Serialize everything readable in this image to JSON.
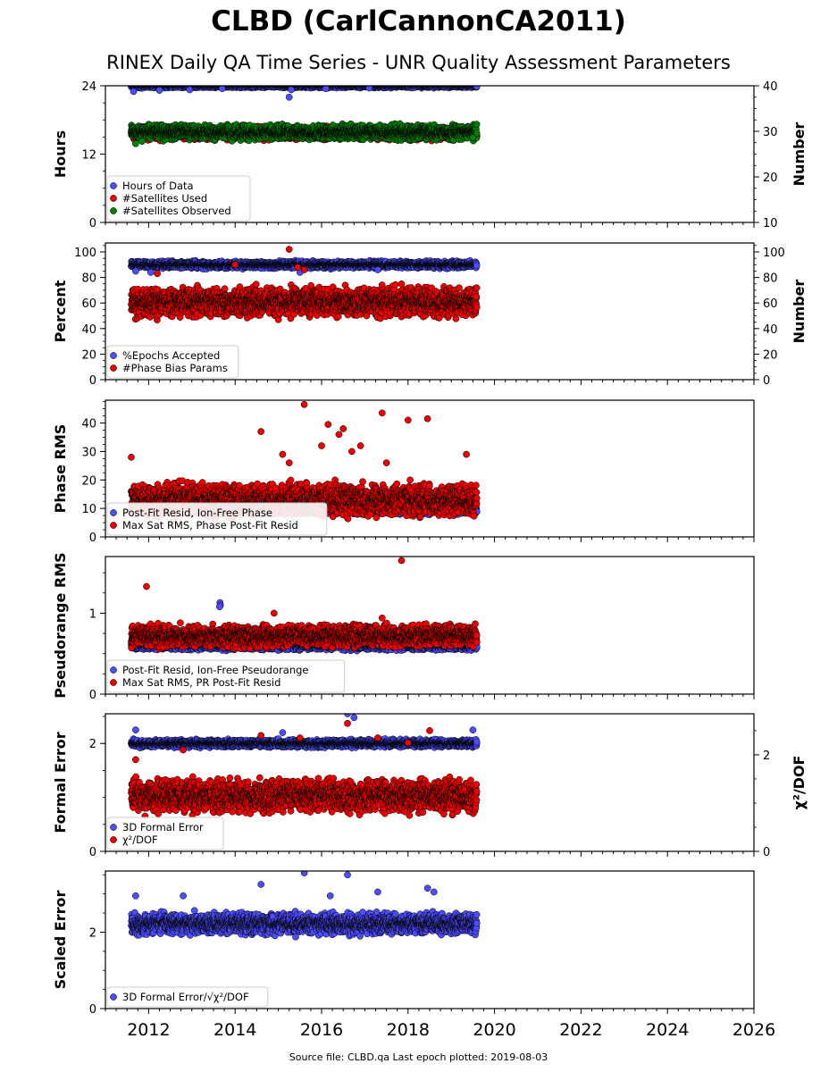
{
  "title": "CLBD (CarlCannonCA2011)",
  "subtitle": "RINEX Daily QA Time Series - UNR Quality Assessment Parameters",
  "source_note": "Source file: CLBD.qa Last epoch plotted: 2019-08-03",
  "colors": {
    "blue": "#4d4dff",
    "red": "#ee0000",
    "green": "#008000"
  },
  "chart_data": [
    {
      "type": "scatter",
      "ylabel": "Hours",
      "ylabel_right": "Number",
      "xlim": [
        2011.0,
        2026.0
      ],
      "ylim": [
        0,
        24
      ],
      "ylim_right": [
        10,
        40
      ],
      "yticks": [
        0,
        12,
        24
      ],
      "yticks_right": [
        10,
        20,
        30,
        40
      ],
      "xticks": [
        2012,
        2014,
        2016,
        2018,
        2020,
        2022,
        2024,
        2026
      ],
      "data_range": [
        2011.6,
        2019.59
      ],
      "legend": [
        "Hours of Data",
        "#Satellites Used",
        "#Satellites Observed"
      ],
      "series": [
        {
          "name": "Hours of Data",
          "color": "blue",
          "axis": "left",
          "base": 24,
          "noise": 0.15,
          "outliers": [
            [
              2011.65,
              23.0
            ],
            [
              2012.25,
              23.2
            ],
            [
              2012.95,
              23.3
            ],
            [
              2013.7,
              23.5
            ],
            [
              2015.25,
              22.0
            ],
            [
              2015.3,
              23.3
            ],
            [
              2016.1,
              23.5
            ],
            [
              2017.1,
              23.6
            ]
          ]
        },
        {
          "name": "#Satellites Used",
          "color": "red",
          "axis": "right",
          "base": 29.6,
          "noise": 0.6,
          "outliers": []
        },
        {
          "name": "#Satellites Observed",
          "color": "green",
          "axis": "right",
          "base": 29.8,
          "noise": 0.7,
          "outliers": [
            [
              2011.7,
              27.3
            ],
            [
              2011.85,
              27.8
            ],
            [
              2019.5,
              28.6
            ]
          ]
        }
      ]
    },
    {
      "type": "scatter",
      "ylabel": "Percent",
      "ylabel_right": "Number",
      "xlim": [
        2011.0,
        2026.0
      ],
      "ylim": [
        0,
        107
      ],
      "ylim_right": [
        0,
        107
      ],
      "yticks": [
        0,
        20,
        40,
        60,
        80,
        100
      ],
      "yticks_right": [
        0,
        20,
        40,
        60,
        80,
        100
      ],
      "xticks": [
        2012,
        2014,
        2016,
        2018,
        2020,
        2022,
        2024,
        2026
      ],
      "data_range": [
        2011.6,
        2019.59
      ],
      "legend": [
        "%Epochs Accepted",
        "#Phase Bias Params"
      ],
      "series": [
        {
          "name": "%Epochs Accepted",
          "color": "blue",
          "axis": "left",
          "base": 90,
          "noise": 1.2,
          "outliers": [
            [
              2011.7,
              85
            ],
            [
              2012.05,
              84
            ],
            [
              2015.5,
              84
            ],
            [
              2017.3,
              86
            ]
          ]
        },
        {
          "name": "#Phase Bias Params",
          "color": "red",
          "axis": "right",
          "base": 61,
          "noise": 5,
          "outliers": [
            [
              2012.2,
              83
            ],
            [
              2014.0,
              90
            ],
            [
              2015.25,
              102
            ],
            [
              2015.45,
              88
            ],
            [
              2015.6,
              86
            ],
            [
              2017.85,
              75
            ]
          ]
        }
      ]
    },
    {
      "type": "scatter",
      "ylabel": "Phase RMS",
      "xlim": [
        2011.0,
        2026.0
      ],
      "ylim": [
        0,
        48
      ],
      "yticks": [
        0,
        10,
        20,
        30,
        40
      ],
      "xticks": [
        2012,
        2014,
        2016,
        2018,
        2020,
        2022,
        2024,
        2026
      ],
      "data_range": [
        2011.6,
        2019.59
      ],
      "legend": [
        "Post-Fit Resid, Ion-Free Phase",
        "Max Sat RMS, Phase Post-Fit Resid"
      ],
      "series": [
        {
          "name": "Post-Fit Resid, Ion-Free Phase",
          "color": "blue",
          "axis": "left",
          "base": 9.3,
          "noise": 0.6,
          "outliers": []
        },
        {
          "name": "Max Sat RMS, Phase Post-Fit Resid",
          "color": "red",
          "axis": "left",
          "base": 13,
          "noise": 2.5,
          "outliers": [
            [
              2011.6,
              28
            ],
            [
              2014.6,
              37
            ],
            [
              2015.1,
              29
            ],
            [
              2015.6,
              46.5
            ],
            [
              2016.0,
              32
            ],
            [
              2016.15,
              39.5
            ],
            [
              2016.4,
              36
            ],
            [
              2016.5,
              38
            ],
            [
              2016.7,
              30
            ],
            [
              2016.9,
              32
            ],
            [
              2017.4,
              43.5
            ],
            [
              2018.0,
              41
            ],
            [
              2018.45,
              41.5
            ],
            [
              2019.35,
              29
            ],
            [
              2015.25,
              26
            ],
            [
              2017.5,
              26
            ]
          ]
        }
      ]
    },
    {
      "type": "scatter",
      "ylabel": "Pseudorange RMS",
      "xlim": [
        2011.0,
        2026.0
      ],
      "ylim": [
        0,
        1.7
      ],
      "yticks": [
        0,
        1
      ],
      "xticks": [
        2012,
        2014,
        2016,
        2018,
        2020,
        2022,
        2024,
        2026
      ],
      "data_range": [
        2011.6,
        2019.59
      ],
      "legend": [
        "Post-Fit Resid, Ion-Free Pseudorange",
        "Max Sat RMS, PR Post-Fit Resid"
      ],
      "series": [
        {
          "name": "Post-Fit Resid, Ion-Free Pseudorange",
          "color": "blue",
          "axis": "left",
          "base": 0.6,
          "noise": 0.025,
          "outliers": [
            [
              2013.65,
              1.13
            ],
            [
              2013.66,
              1.1
            ],
            [
              2013.64,
              1.08
            ]
          ]
        },
        {
          "name": "Max Sat RMS, PR Post-Fit Resid",
          "color": "red",
          "axis": "left",
          "base": 0.72,
          "noise": 0.06,
          "outliers": [
            [
              2011.95,
              1.33
            ],
            [
              2014.9,
              1.0
            ],
            [
              2017.85,
              1.65
            ],
            [
              2017.4,
              0.94
            ]
          ]
        }
      ]
    },
    {
      "type": "scatter",
      "ylabel": "Formal Error",
      "ylabel_right": "χ²/DOF",
      "xlim": [
        2011.0,
        2026.0
      ],
      "ylim": [
        0,
        2.55
      ],
      "ylim_right": [
        0,
        2.85
      ],
      "yticks": [
        0,
        2
      ],
      "yticks_right": [
        0,
        2
      ],
      "xticks": [
        2012,
        2014,
        2016,
        2018,
        2020,
        2022,
        2024,
        2026
      ],
      "data_range": [
        2011.6,
        2019.59
      ],
      "legend": [
        "3D Formal Error",
        "χ²/DOF"
      ],
      "series": [
        {
          "name": "3D Formal Error",
          "color": "blue",
          "axis": "left",
          "base": 2.0,
          "noise": 0.03,
          "outliers": [
            [
              2011.7,
              2.25
            ],
            [
              2015.1,
              2.2
            ],
            [
              2016.6,
              2.55
            ],
            [
              2016.75,
              2.48
            ],
            [
              2019.5,
              2.25
            ]
          ]
        },
        {
          "name": "χ²/DOF",
          "color": "red",
          "axis": "right",
          "base": 1.15,
          "noise": 0.15,
          "outliers": [
            [
              2011.7,
              1.9
            ],
            [
              2012.8,
              2.1
            ],
            [
              2014.6,
              2.4
            ],
            [
              2015.5,
              2.35
            ],
            [
              2016.6,
              2.65
            ],
            [
              2017.3,
              2.35
            ],
            [
              2018.0,
              2.25
            ],
            [
              2018.5,
              2.5
            ]
          ]
        }
      ]
    },
    {
      "type": "scatter",
      "ylabel": "Scaled Error",
      "xlim": [
        2011.0,
        2026.0
      ],
      "ylim": [
        0,
        3.6
      ],
      "yticks": [
        0,
        2
      ],
      "xticks": [
        2012,
        2014,
        2016,
        2018,
        2020,
        2022,
        2024,
        2026
      ],
      "data_range": [
        2011.6,
        2019.59
      ],
      "legend": [
        "3D Formal Error/√χ²/DOF"
      ],
      "series": [
        {
          "name": "3D Formal Error/√χ²/DOF",
          "color": "blue",
          "axis": "left",
          "base": 2.22,
          "noise": 0.12,
          "outliers": [
            [
              2014.6,
              3.25
            ],
            [
              2015.6,
              3.55
            ],
            [
              2016.6,
              3.5
            ],
            [
              2017.3,
              3.05
            ],
            [
              2018.45,
              3.15
            ],
            [
              2018.6,
              3.05
            ],
            [
              2011.7,
              2.95
            ],
            [
              2012.8,
              2.95
            ],
            [
              2016.2,
              2.95
            ]
          ]
        }
      ]
    }
  ]
}
